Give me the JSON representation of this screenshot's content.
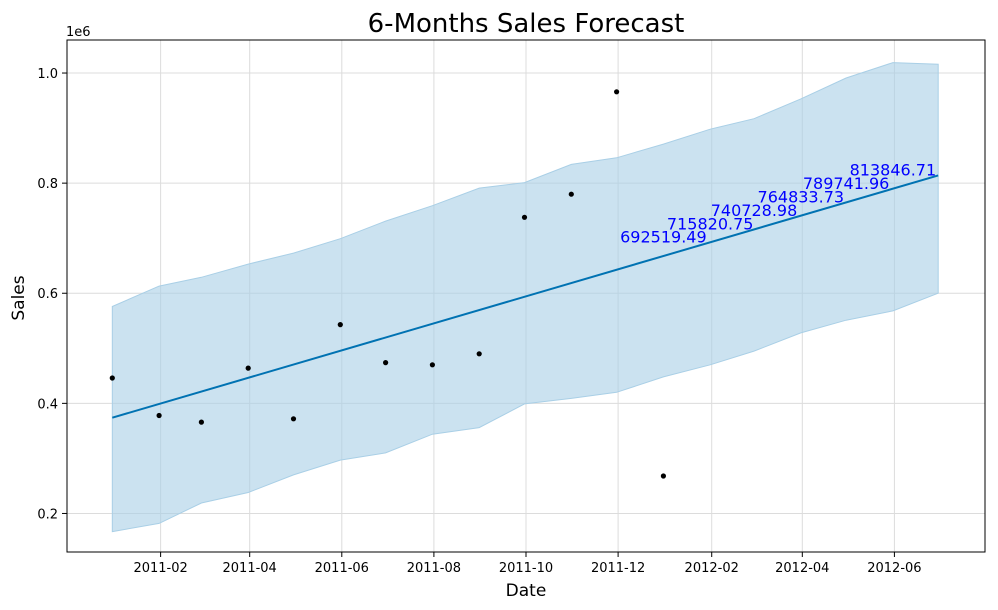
{
  "chart_data": {
    "type": "line",
    "title": "6-Months Sales Forecast",
    "xlabel": "Date",
    "ylabel": "Sales",
    "y_offset_label": "1e6",
    "grid": true,
    "xlim": [
      "2010-12-01",
      "2012-07-31"
    ],
    "ylim": [
      0.13,
      1.06
    ],
    "x_ticks": [
      "2011-02-01",
      "2011-04-01",
      "2011-06-01",
      "2011-08-01",
      "2011-10-01",
      "2011-12-01",
      "2012-02-01",
      "2012-04-01",
      "2012-06-01"
    ],
    "x_tick_labels": [
      "2011-02",
      "2011-04",
      "2011-06",
      "2011-08",
      "2011-10",
      "2011-12",
      "2012-02",
      "2012-04",
      "2012-06"
    ],
    "y_ticks": [
      0.2,
      0.4,
      0.6,
      0.8,
      1.0
    ],
    "y_tick_labels": [
      "0.2",
      "0.4",
      "0.6",
      "0.8",
      "1.0"
    ],
    "colors": {
      "forecast_line": "#0072b2",
      "interval_fill": "#a9cfe6",
      "points": "#000000",
      "annotation": "#0000ff",
      "grid": "#dcdcdc"
    },
    "series": [
      {
        "type": "scatter",
        "x": [
          "2010-12-31",
          "2011-01-31",
          "2011-02-28",
          "2011-03-31",
          "2011-04-30",
          "2011-05-31",
          "2011-06-30",
          "2011-07-31",
          "2011-08-31",
          "2011-09-30",
          "2011-10-31",
          "2011-11-30",
          "2011-12-31"
        ],
        "y": [
          0.446,
          0.378,
          0.366,
          0.464,
          0.372,
          0.543,
          0.474,
          0.47,
          0.49,
          0.738,
          0.78,
          0.966,
          0.268
        ]
      },
      {
        "type": "line",
        "x": [
          "2010-12-31",
          "2012-06-30"
        ],
        "y": [
          0.374,
          0.814
        ]
      },
      {
        "type": "area",
        "x": [
          "2010-12-31",
          "2011-01-31",
          "2011-02-28",
          "2011-03-31",
          "2011-04-30",
          "2011-05-31",
          "2011-06-30",
          "2011-07-31",
          "2011-08-31",
          "2011-09-30",
          "2011-10-31",
          "2011-11-30",
          "2011-12-31",
          "2012-01-31",
          "2012-02-29",
          "2012-03-31",
          "2012-04-30",
          "2012-05-31",
          "2012-06-30"
        ],
        "upper": [
          0.576,
          0.613,
          0.629,
          0.653,
          0.673,
          0.699,
          0.731,
          0.759,
          0.791,
          0.801,
          0.834,
          0.846,
          0.871,
          0.898,
          0.917,
          0.953,
          0.991,
          1.019,
          1.016
        ],
        "lower": [
          0.167,
          0.182,
          0.219,
          0.238,
          0.27,
          0.297,
          0.31,
          0.344,
          0.356,
          0.399,
          0.409,
          0.42,
          0.448,
          0.47,
          0.495,
          0.528,
          0.551,
          0.568,
          0.6
        ]
      }
    ],
    "annotations": [
      {
        "x": "2011-12-31",
        "y": 0.6925,
        "text": "692519.49"
      },
      {
        "x": "2012-01-31",
        "y": 0.7158,
        "text": "715820.75"
      },
      {
        "x": "2012-02-29",
        "y": 0.7407,
        "text": "740728.98"
      },
      {
        "x": "2012-03-31",
        "y": 0.7648,
        "text": "764833.73"
      },
      {
        "x": "2012-04-30",
        "y": 0.7897,
        "text": "789741.96"
      },
      {
        "x": "2012-05-31",
        "y": 0.8138,
        "text": "813846.71"
      }
    ]
  }
}
